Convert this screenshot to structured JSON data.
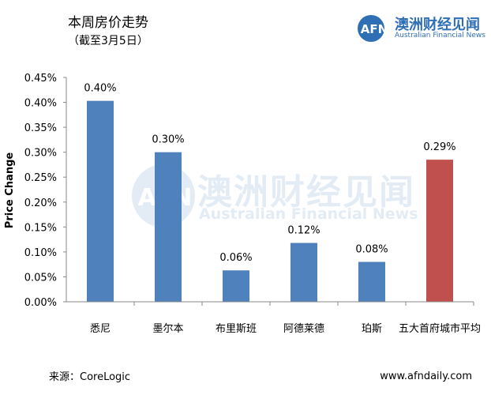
{
  "header": {
    "title": "本周房价走势",
    "subtitle": "（截至3月5日）"
  },
  "brand": {
    "logo_text": "AFN",
    "name_cn": "澳洲财经见闻",
    "name_en": "Australian Financial News"
  },
  "watermark": {
    "logo_text": "AFN",
    "name_cn": "澳洲财经见闻",
    "name_en": "Australian Financial News"
  },
  "footer": {
    "source": "来源：CoreLogic",
    "url": "www.afndaily.com"
  },
  "colors": {
    "bar_primary": "#4f81bd",
    "bar_highlight": "#c0504d",
    "brand_blue": "#2f6fb6"
  },
  "chart_data": {
    "type": "bar",
    "title": "本周房价走势",
    "subtitle": "（截至3月5日）",
    "ylabel": "Price Change",
    "xlabel": "",
    "ylim": [
      0,
      0.45
    ],
    "ytick_values": [
      0,
      0.05,
      0.1,
      0.15,
      0.2,
      0.25,
      0.3,
      0.35,
      0.4,
      0.45
    ],
    "yticks": [
      "0.00%",
      "0.05%",
      "0.10%",
      "0.15%",
      "0.20%",
      "0.25%",
      "0.30%",
      "0.35%",
      "0.40%",
      "0.45%"
    ],
    "categories": [
      "悉尼",
      "墨尔本",
      "布里斯班",
      "阿德莱德",
      "珀斯",
      "五大首府城市平均"
    ],
    "values": [
      0.4,
      0.3,
      0.06,
      0.12,
      0.08,
      0.29
    ],
    "bar_heights": [
      0.403,
      0.3,
      0.063,
      0.118,
      0.08,
      0.285
    ],
    "data_labels": [
      "0.40%",
      "0.30%",
      "0.06%",
      "0.12%",
      "0.08%",
      "0.29%"
    ],
    "grid": false,
    "legend": "none"
  }
}
